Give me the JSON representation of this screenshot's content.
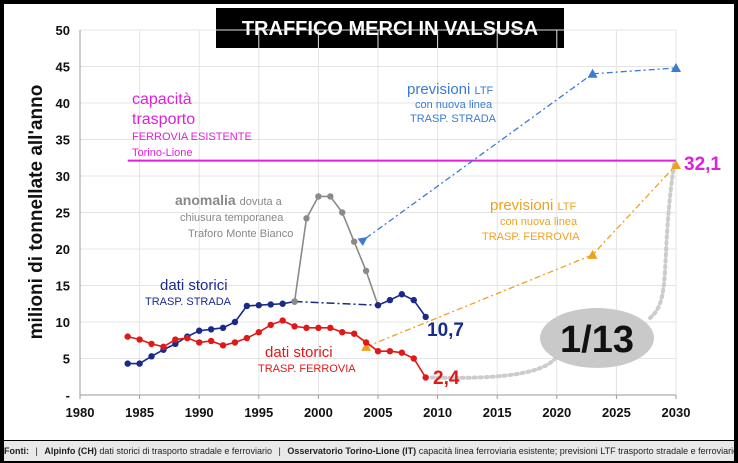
{
  "chart_data": {
    "type": "line",
    "title": "TRAFFICO MERCI IN VALSUSA",
    "ylabel": "milioni di tonnellate all'anno",
    "xlim": [
      1980,
      2030
    ],
    "ylim": [
      0,
      50
    ],
    "x_ticks": [
      1980,
      1985,
      1990,
      1995,
      2000,
      2005,
      2010,
      2015,
      2020,
      2025,
      2030
    ],
    "y_ticks": [
      5,
      10,
      15,
      20,
      25,
      30,
      35,
      40,
      45,
      50
    ],
    "y_zero_label": "-",
    "grid": true,
    "colors": {
      "road": "#1a2a8a",
      "rail": "#e01818",
      "anomaly": "#8a8a8a",
      "capacity": "#e020d8",
      "road_forecast": "#3a7bd5",
      "rail_forecast": "#f0a020",
      "connector": "#cccccc"
    },
    "series": [
      {
        "name": "dati storici TRASP. STRADA",
        "x": [
          1984,
          1985,
          1986,
          1987,
          1988,
          1989,
          1990,
          1991,
          1992,
          1993,
          1994,
          1995,
          1996,
          1997,
          1998
        ],
        "y": [
          4.3,
          4.3,
          5.3,
          6.2,
          7.0,
          8.0,
          8.8,
          9.0,
          9.2,
          10.0,
          12.2,
          12.3,
          12.4,
          12.5,
          12.8
        ]
      },
      {
        "name": "anomalia",
        "x": [
          1998,
          1999,
          2000,
          2001,
          2002,
          2003,
          2004,
          2005
        ],
        "y": [
          12.8,
          24.2,
          27.2,
          27.2,
          25.0,
          21.0,
          17.0,
          12.3
        ]
      },
      {
        "name": "dati storici TRASP. STRADA (2005-2009)",
        "x": [
          2005,
          2006,
          2007,
          2008,
          2009
        ],
        "y": [
          12.3,
          13.0,
          13.8,
          13.0,
          10.7
        ]
      },
      {
        "name": "dati storici TRASP. FERROVIA",
        "x": [
          1984,
          1985,
          1986,
          1987,
          1988,
          1989,
          1990,
          1991,
          1992,
          1993,
          1994,
          1995,
          1996,
          1997,
          1998,
          1999,
          2000,
          2001,
          2002,
          2003,
          2004,
          2005,
          2006,
          2007,
          2008,
          2009
        ],
        "y": [
          8.0,
          7.6,
          7.0,
          6.6,
          7.6,
          7.8,
          7.2,
          7.4,
          6.8,
          7.2,
          7.8,
          8.6,
          9.6,
          10.2,
          9.4,
          9.2,
          9.2,
          9.2,
          8.6,
          8.4,
          7.2,
          6.0,
          6.0,
          5.8,
          5.0,
          2.4
        ]
      },
      {
        "name": "previsioni LTF TRASP. STRADA",
        "x": [
          2004,
          2023,
          2030
        ],
        "y": [
          21.5,
          44.0,
          44.8
        ]
      },
      {
        "name": "previsioni LTF TRASP. FERROVIA",
        "x": [
          2004,
          2023,
          2030
        ],
        "y": [
          6.6,
          19.2,
          31.5
        ]
      }
    ],
    "road_gap": {
      "x": [
        1998,
        2005
      ],
      "y": [
        12.8,
        12.3
      ]
    },
    "capacity_line": {
      "y": 32.1,
      "x": [
        1984,
        2030
      ]
    },
    "annotations": {
      "capacity_1": "capacità",
      "capacity_2": "trasporto",
      "capacity_3": "FERROVIA ESISTENTE",
      "capacity_4": "Torino-Lione",
      "anomaly_1a": "anomalia ",
      "anomaly_1b": "dovuta a",
      "anomaly_2": "chiusura temporanea",
      "anomaly_3": "Traforo Monte Bianco",
      "road_hist_1": "dati storici",
      "road_hist_2": "TRASP. STRADA",
      "rail_hist_1": "dati storici",
      "rail_hist_2": "TRASP. FERROVIA",
      "road_fc_1a": "previsioni ",
      "road_fc_1b": "LTF",
      "road_fc_2": "con nuova linea",
      "road_fc_3": "TRASP. STRADA",
      "rail_fc_1a": "previsioni ",
      "rail_fc_1b": "LTF",
      "rail_fc_2": "con nuova linea",
      "rail_fc_3": "TRASP. FERROVIA",
      "road_end": "10,7",
      "rail_end": "2,4",
      "capacity_end": "32,1",
      "ratio": "1/13"
    }
  },
  "footer": {
    "prefix": "Fonti:",
    "sep": "|",
    "src1_name": "Alpinfo (CH)",
    "src1_desc": "dati storici di trasporto stradale e ferroviario",
    "src2_name": "Osservatorio Torino-Lione (IT)",
    "src2_desc": "capacità linea ferroviaria esistente; previsioni LTF trasporto stradale e ferroviario"
  }
}
